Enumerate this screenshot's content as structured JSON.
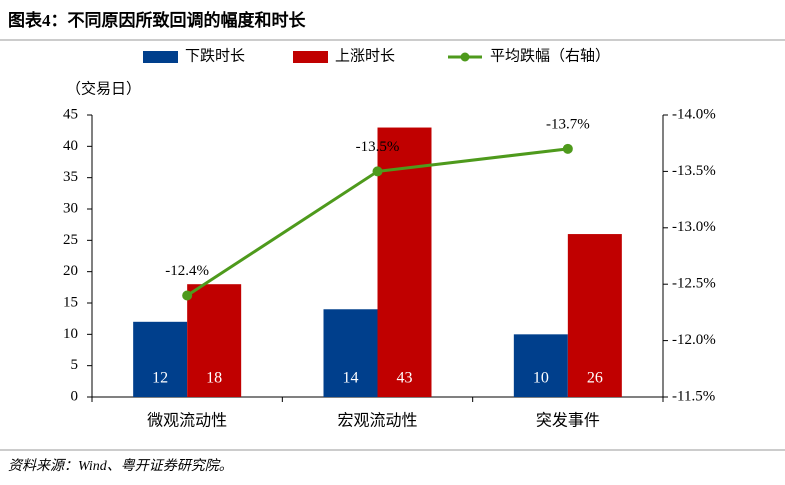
{
  "chart_data": {
    "type": "bar",
    "title": "图表4：不同原因所致回调的幅度和时长",
    "y_label": "（交易日）",
    "source": "资料来源：Wind、粤开证券研究院。",
    "categories": [
      "微观流动性",
      "宏观流动性",
      "突发事件"
    ],
    "series": [
      {
        "name": "下跌时长",
        "color": "#003f8c",
        "values": [
          12,
          14,
          10
        ]
      },
      {
        "name": "上涨时长",
        "color": "#c00000",
        "values": [
          18,
          43,
          26
        ]
      },
      {
        "name": "平均跌幅（右轴）",
        "color": "#4e9a1c",
        "type": "line",
        "axis": "y2",
        "values": [
          -12.4,
          -13.5,
          -13.7
        ],
        "value_labels": [
          "-12.4%",
          "-13.5%",
          "-13.7%"
        ]
      }
    ],
    "ylim": [
      0,
      45
    ],
    "yticks": [
      0,
      5,
      10,
      15,
      20,
      25,
      30,
      35,
      40,
      45
    ],
    "y2lim": [
      -11.5,
      -14.0
    ],
    "y2ticks": [
      {
        "value": -14.0,
        "label": "-14.0%"
      },
      {
        "value": -13.5,
        "label": "-13.5%"
      },
      {
        "value": -13.0,
        "label": "-13.0%"
      },
      {
        "value": -12.5,
        "label": "-12.5%"
      },
      {
        "value": -12.0,
        "label": "-12.0%"
      },
      {
        "value": -11.5,
        "label": "-11.5%"
      }
    ],
    "legend": "top"
  }
}
